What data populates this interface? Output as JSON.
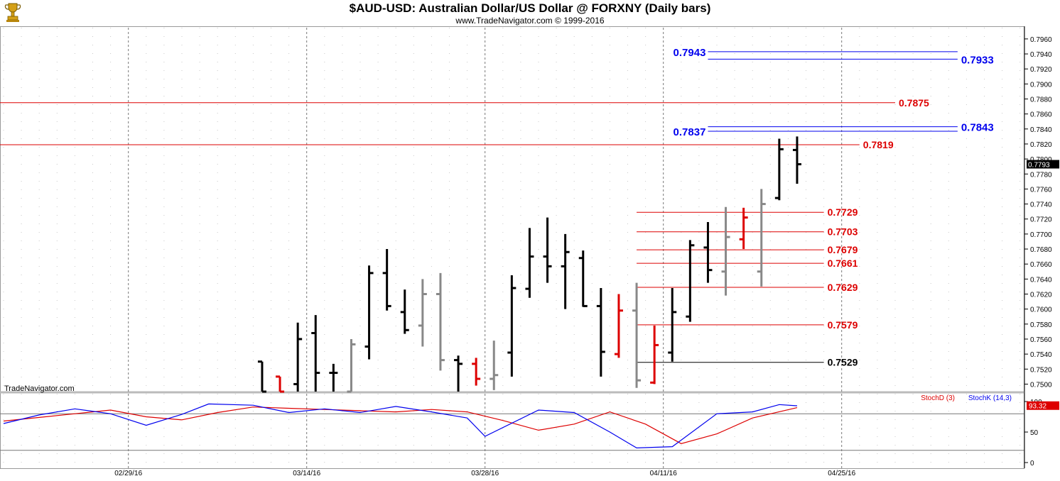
{
  "header": {
    "title": "$AUD-USD:  Australian Dollar/US Dollar @ FORXNY  (Daily bars)",
    "subtitle": "www.TradeNavigator.com © 1999-2016",
    "logo_icon": "trophy-logo-icon"
  },
  "watermark": "TradeNavigator.com",
  "colors": {
    "blue": "#0000ee",
    "red": "#dd0000",
    "gray": "#888888",
    "black": "#000000"
  },
  "chart_data": [
    {
      "type": "ohlc",
      "ylim": [
        0.749,
        0.7975
      ],
      "y_ticks": [
        "0.7500",
        "0.7520",
        "0.7540",
        "0.7560",
        "0.7580",
        "0.7600",
        "0.7620",
        "0.7640",
        "0.7660",
        "0.7680",
        "0.7700",
        "0.7720",
        "0.7740",
        "0.7760",
        "0.7780",
        "0.7800",
        "0.7820",
        "0.7840",
        "0.7860",
        "0.7880",
        "0.7900",
        "0.7920",
        "0.7940",
        "0.7960"
      ],
      "x_date_labels": [
        "02/29/16",
        "03/14/16",
        "03/28/16",
        "04/11/16",
        "04/25/16"
      ],
      "x_label_slots": [
        7,
        17,
        27,
        37,
        47
      ],
      "last_price": "0.7793",
      "bars": [
        {
          "slot": 14.5,
          "o": 0.753,
          "h": 0.753,
          "l": 0.749,
          "c": 0.749,
          "color": "black"
        },
        {
          "slot": 15.5,
          "o": 0.751,
          "h": 0.751,
          "l": 0.749,
          "c": 0.749,
          "color": "red"
        },
        {
          "slot": 16.5,
          "o": 0.75,
          "h": 0.7582,
          "l": 0.749,
          "c": 0.756,
          "color": "black"
        },
        {
          "slot": 17.5,
          "o": 0.7568,
          "h": 0.7592,
          "l": 0.749,
          "c": 0.7515,
          "color": "black"
        },
        {
          "slot": 18.5,
          "o": 0.7515,
          "h": 0.7527,
          "l": 0.749,
          "c": 0.7515,
          "color": "black"
        },
        {
          "slot": 19.5,
          "o": 0.749,
          "h": 0.756,
          "l": 0.749,
          "c": 0.7553,
          "color": "gray"
        },
        {
          "slot": 20.5,
          "o": 0.755,
          "h": 0.7658,
          "l": 0.7533,
          "c": 0.7648,
          "color": "black"
        },
        {
          "slot": 21.5,
          "o": 0.7648,
          "h": 0.768,
          "l": 0.7598,
          "c": 0.7604,
          "color": "black"
        },
        {
          "slot": 22.5,
          "o": 0.7596,
          "h": 0.7626,
          "l": 0.7567,
          "c": 0.7572,
          "color": "black"
        },
        {
          "slot": 23.5,
          "o": 0.7578,
          "h": 0.764,
          "l": 0.755,
          "c": 0.762,
          "color": "gray"
        },
        {
          "slot": 24.5,
          "o": 0.762,
          "h": 0.7648,
          "l": 0.7518,
          "c": 0.7532,
          "color": "gray"
        },
        {
          "slot": 25.5,
          "o": 0.7532,
          "h": 0.7538,
          "l": 0.749,
          "c": 0.7527,
          "color": "black"
        },
        {
          "slot": 26.5,
          "o": 0.7527,
          "h": 0.7535,
          "l": 0.7498,
          "c": 0.7507,
          "color": "red"
        },
        {
          "slot": 27.5,
          "o": 0.7507,
          "h": 0.7558,
          "l": 0.7492,
          "c": 0.7512,
          "color": "gray"
        },
        {
          "slot": 28.5,
          "o": 0.7542,
          "h": 0.7645,
          "l": 0.751,
          "c": 0.7628,
          "color": "black"
        },
        {
          "slot": 29.5,
          "o": 0.7627,
          "h": 0.7708,
          "l": 0.7615,
          "c": 0.767,
          "color": "black"
        },
        {
          "slot": 30.5,
          "o": 0.767,
          "h": 0.7722,
          "l": 0.7635,
          "c": 0.7657,
          "color": "black"
        },
        {
          "slot": 31.5,
          "o": 0.7657,
          "h": 0.77,
          "l": 0.76,
          "c": 0.7676,
          "color": "black"
        },
        {
          "slot": 32.5,
          "o": 0.7668,
          "h": 0.7678,
          "l": 0.7603,
          "c": 0.7604,
          "color": "black"
        },
        {
          "slot": 33.5,
          "o": 0.7604,
          "h": 0.7628,
          "l": 0.751,
          "c": 0.7543,
          "color": "black"
        },
        {
          "slot": 34.5,
          "o": 0.754,
          "h": 0.762,
          "l": 0.7535,
          "c": 0.7598,
          "color": "red"
        },
        {
          "slot": 35.5,
          "o": 0.7598,
          "h": 0.7635,
          "l": 0.7495,
          "c": 0.7505,
          "color": "gray"
        },
        {
          "slot": 36.5,
          "o": 0.7502,
          "h": 0.7578,
          "l": 0.75,
          "c": 0.7552,
          "color": "red"
        },
        {
          "slot": 37.5,
          "o": 0.7542,
          "h": 0.7628,
          "l": 0.753,
          "c": 0.7596,
          "color": "black"
        },
        {
          "slot": 38.5,
          "o": 0.759,
          "h": 0.7692,
          "l": 0.7583,
          "c": 0.7685,
          "color": "black"
        },
        {
          "slot": 39.5,
          "o": 0.7682,
          "h": 0.7716,
          "l": 0.7635,
          "c": 0.7652,
          "color": "black"
        },
        {
          "slot": 40.5,
          "o": 0.765,
          "h": 0.7736,
          "l": 0.7618,
          "c": 0.7696,
          "color": "gray"
        },
        {
          "slot": 41.5,
          "o": 0.7693,
          "h": 0.7735,
          "l": 0.768,
          "c": 0.7722,
          "color": "red"
        },
        {
          "slot": 42.5,
          "o": 0.765,
          "h": 0.776,
          "l": 0.763,
          "c": 0.774,
          "color": "gray"
        },
        {
          "slot": 43.5,
          "o": 0.7748,
          "h": 0.7827,
          "l": 0.7745,
          "c": 0.7813,
          "color": "black"
        },
        {
          "slot": 44.5,
          "o": 0.7812,
          "h": 0.783,
          "l": 0.7767,
          "c": 0.7793,
          "color": "black"
        }
      ],
      "levels": [
        {
          "value": 0.7943,
          "label": "0.7943",
          "color": "blue",
          "x1": 39.5,
          "x2": 53.5,
          "label_pos": "left"
        },
        {
          "value": 0.7933,
          "label": "0.7933",
          "color": "blue",
          "x1": 39.5,
          "x2": 53.5,
          "label_pos": "right"
        },
        {
          "value": 0.7875,
          "label": "0.7875",
          "color": "red",
          "x1": 0,
          "x2": 50,
          "label_pos": "right"
        },
        {
          "value": 0.7843,
          "label": "0.7843",
          "color": "blue",
          "x1": 39.5,
          "x2": 53.5,
          "label_pos": "right"
        },
        {
          "value": 0.7837,
          "label": "0.7837",
          "color": "blue",
          "x1": 39.5,
          "x2": 53.5,
          "label_pos": "left"
        },
        {
          "value": 0.7819,
          "label": "0.7819",
          "color": "red",
          "x1": 0,
          "x2": 48,
          "label_pos": "right"
        },
        {
          "value": 0.7729,
          "label": "0.7729",
          "color": "red",
          "x1": 35.5,
          "x2": 46,
          "label_pos": "right"
        },
        {
          "value": 0.7703,
          "label": "0.7703",
          "color": "red",
          "x1": 35.5,
          "x2": 46,
          "label_pos": "right"
        },
        {
          "value": 0.7679,
          "label": "0.7679",
          "color": "red",
          "x1": 35.5,
          "x2": 46,
          "label_pos": "right"
        },
        {
          "value": 0.7661,
          "label": "0.7661",
          "color": "red",
          "x1": 35.5,
          "x2": 46,
          "label_pos": "right"
        },
        {
          "value": 0.7629,
          "label": "0.7629",
          "color": "red",
          "x1": 35.5,
          "x2": 46,
          "label_pos": "right"
        },
        {
          "value": 0.7579,
          "label": "0.7579",
          "color": "red",
          "x1": 35.5,
          "x2": 46,
          "label_pos": "right"
        },
        {
          "value": 0.7529,
          "label": "0.7529",
          "color": "black",
          "x1": 35.5,
          "x2": 46,
          "label_pos": "right"
        }
      ]
    },
    {
      "type": "line",
      "ylim": [
        0,
        100
      ],
      "y_ticks": [
        "100",
        "50",
        "0"
      ],
      "hlines": [
        80,
        20
      ],
      "legend": [
        "StochD (3)",
        "StochK (14,3)"
      ],
      "last_value": "93.32",
      "series": [
        {
          "name": "StochD (3)",
          "color": "red",
          "x": [
            0,
            2,
            4,
            6,
            8,
            10,
            12,
            14,
            16,
            18,
            20,
            22,
            24,
            26,
            28,
            30,
            32,
            34,
            36,
            38,
            40,
            42,
            44.5
          ],
          "values": [
            68,
            74,
            80,
            86,
            75,
            70,
            82,
            91,
            89,
            87,
            85,
            83,
            87,
            83,
            69,
            53,
            63,
            83,
            63,
            31,
            47,
            73,
            90
          ]
        },
        {
          "name": "StochK (14,3)",
          "color": "blue",
          "x": [
            0,
            2,
            4,
            6,
            8,
            10,
            11.5,
            14,
            16,
            18,
            20,
            22,
            24,
            26,
            27,
            30,
            32,
            34,
            35.5,
            37.5,
            40,
            42,
            43.5,
            44.5
          ],
          "values": [
            64,
            78,
            88,
            80,
            61,
            79,
            96,
            94,
            82,
            88,
            82,
            92,
            83,
            73,
            43,
            86,
            82,
            50,
            24,
            26,
            80,
            83,
            95,
            93
          ]
        }
      ]
    }
  ]
}
